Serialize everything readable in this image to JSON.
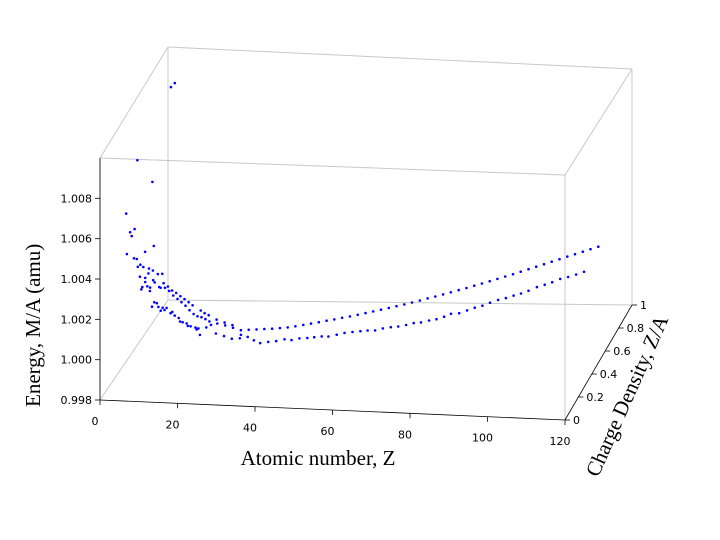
{
  "chart_data": {
    "type": "scatter",
    "x_label": "Atomic number, Z",
    "y_label": "Charge Density, Z/A",
    "z_label": "Energy, M/A (amu)",
    "x_ticks": [
      "0",
      "20",
      "40",
      "60",
      "80",
      "100",
      "120"
    ],
    "y_ticks": [
      "0",
      "0.2",
      "0.4",
      "0.6",
      "0.8",
      "1"
    ],
    "z_ticks": [
      "0.998",
      "1.000",
      "1.002",
      "1.004",
      "1.006",
      "1.008"
    ],
    "x_range": [
      0,
      120
    ],
    "y_range": [
      0,
      1
    ],
    "z_range": [
      0.998,
      1.01
    ],
    "grid": false,
    "marker_color": "#0000ff",
    "series": [
      {
        "points": [
          [
            1,
            1.0,
            1.00782
          ],
          [
            1,
            0.5,
            1.00705
          ],
          [
            1,
            0.333,
            1.00535
          ],
          [
            2,
            1.0,
            1.00803
          ],
          [
            2,
            0.667,
            1.00503
          ],
          [
            2,
            0.5,
            1.00065
          ],
          [
            2,
            0.4,
            1.00421
          ],
          [
            2,
            0.333,
            1.00444
          ],
          [
            3,
            0.5,
            1.00252
          ],
          [
            3,
            0.429,
            1.00229
          ],
          [
            3,
            0.375,
            1.00288
          ],
          [
            4,
            0.571,
            1.00242
          ],
          [
            4,
            0.5,
            1.0017
          ],
          [
            4,
            0.444,
            1.00135
          ],
          [
            4,
            0.4,
            1.00135
          ],
          [
            5,
            0.5,
            1.00161
          ],
          [
            5,
            0.455,
            1.00085
          ],
          [
            5,
            0.417,
            1.0013
          ],
          [
            6,
            0.5,
            1.0
          ],
          [
            6,
            0.462,
            1.00026
          ],
          [
            6,
            0.429,
            1.00023
          ],
          [
            7,
            0.5,
            1.00077
          ],
          [
            7,
            0.467,
            1.00001
          ],
          [
            8,
            0.5,
            0.99968
          ],
          [
            8,
            0.471,
            0.99995
          ],
          [
            8,
            0.444,
            0.99996
          ],
          [
            9,
            0.474,
            0.99994
          ],
          [
            10,
            0.5,
            0.9996
          ],
          [
            10,
            0.476,
            0.99967
          ],
          [
            11,
            0.478,
            0.99955
          ],
          [
            12,
            0.5,
            0.99914
          ],
          [
            12,
            0.48,
            0.99943
          ],
          [
            13,
            0.481,
            0.99922
          ],
          [
            14,
            0.5,
            0.99894
          ],
          [
            14,
            0.483,
            0.99916
          ],
          [
            15,
            0.484,
            0.99902
          ],
          [
            16,
            0.5,
            0.99887
          ],
          [
            17,
            0.486,
            0.99892
          ],
          [
            17,
            0.459,
            0.99902
          ],
          [
            18,
            0.45,
            0.99881
          ],
          [
            19,
            0.487,
            0.99898
          ],
          [
            20,
            0.5,
            0.99904
          ],
          [
            22,
            0.458,
            0.99887
          ],
          [
            24,
            0.462,
            0.99873
          ],
          [
            26,
            0.464,
            0.99861
          ],
          [
            28,
            0.483,
            0.99871
          ],
          [
            28,
            0.467,
            0.99863
          ],
          [
            30,
            0.469,
            0.9987
          ],
          [
            32,
            0.446,
            0.99868
          ],
          [
            34,
            0.425,
            0.99868
          ],
          [
            36,
            0.429,
            0.99873
          ],
          [
            38,
            0.432,
            0.99877
          ],
          [
            40,
            0.44,
            0.99883
          ],
          [
            42,
            0.429,
            0.99887
          ],
          [
            44,
            0.431,
            0.99896
          ],
          [
            46,
            0.434,
            0.99898
          ],
          [
            48,
            0.421,
            0.99911
          ],
          [
            50,
            0.417,
            0.99919
          ],
          [
            52,
            0.401,
            0.99929
          ],
          [
            54,
            0.409,
            0.99935
          ],
          [
            56,
            0.41,
            0.99945
          ],
          [
            58,
            0.414,
            0.99949
          ],
          [
            60,
            0.417,
            0.99953
          ],
          [
            62,
            0.408,
            0.99963
          ],
          [
            64,
            0.405,
            0.99967
          ],
          [
            66,
            0.404,
            0.99979
          ],
          [
            68,
            0.407,
            0.99985
          ],
          [
            70,
            0.402,
            0.99993
          ],
          [
            72,
            0.404,
            1.00001
          ],
          [
            74,
            0.402,
            1.00013
          ],
          [
            76,
            0.396,
            1.00022
          ],
          [
            78,
            0.401,
            1.0003
          ],
          [
            80,
            0.396,
            1.00041
          ],
          [
            82,
            0.394,
            1.00056
          ],
          [
            84,
            0.38,
            1.0008
          ],
          [
            86,
            0.387,
            1.00081
          ],
          [
            88,
            0.389,
            1.00095
          ],
          [
            90,
            0.388,
            1.00111
          ],
          [
            92,
            0.387,
            1.00123
          ],
          [
            94,
            0.384,
            1.00141
          ],
          [
            96,
            0.389,
            1.00154
          ],
          [
            98,
            0.39,
            1.00164
          ],
          [
            100,
            0.39,
            1.00178
          ],
          [
            102,
            0.385,
            1.00193
          ],
          [
            104,
            0.381,
            1.0021
          ],
          [
            106,
            0.39,
            1.00225
          ],
          [
            108,
            0.391,
            1.00238
          ],
          [
            110,
            0.388,
            1.00254
          ],
          [
            112,
            0.391,
            1.0027
          ],
          [
            114,
            0.393,
            1.0028
          ],
          [
            116,
            0.397,
            1.00292
          ],
          [
            118,
            0.4,
            1.00305
          ],
          [
            2,
            0.286,
            1.00362
          ],
          [
            3,
            0.333,
            1.00315
          ],
          [
            3,
            0.3,
            1.00444
          ],
          [
            4,
            0.364,
            1.00207
          ],
          [
            4,
            0.333,
            1.00274
          ],
          [
            5,
            0.385,
            1.0019
          ],
          [
            5,
            0.357,
            1.0026
          ],
          [
            6,
            0.375,
            1.00219
          ],
          [
            6,
            0.4,
            1.00134
          ],
          [
            7,
            0.412,
            1.00154
          ],
          [
            7,
            0.389,
            1.00178
          ],
          [
            8,
            0.421,
            1.00127
          ],
          [
            8,
            0.4,
            1.00203
          ],
          [
            9,
            0.45,
            1.00107
          ],
          [
            9,
            0.429,
            1.00142
          ],
          [
            9,
            0.409,
            1.002
          ],
          [
            10,
            0.455,
            1.0009
          ],
          [
            10,
            0.435,
            1.00123
          ],
          [
            11,
            0.458,
            1.00066
          ],
          [
            11,
            0.44,
            1.00101
          ],
          [
            12,
            0.462,
            1.00048
          ],
          [
            12,
            0.444,
            1.00088
          ],
          [
            13,
            0.464,
            1.00031
          ],
          [
            13,
            0.448,
            1.0007
          ],
          [
            14,
            0.467,
            1.00013
          ],
          [
            14,
            0.452,
            1.00054
          ],
          [
            15,
            0.469,
            0.9999
          ],
          [
            15,
            0.455,
            1.00038
          ],
          [
            16,
            0.471,
            0.99971
          ],
          [
            16,
            0.457,
            1.00022
          ],
          [
            17,
            0.472,
            0.9996
          ],
          [
            18,
            0.474,
            0.99955
          ],
          [
            18,
            0.462,
            0.99995
          ],
          [
            19,
            0.475,
            0.99946
          ],
          [
            19,
            0.463,
            0.99982
          ],
          [
            20,
            0.476,
            0.99935
          ],
          [
            20,
            0.465,
            0.99972
          ],
          [
            22,
            0.478,
            0.99925
          ],
          [
            22,
            0.468,
            0.9995
          ],
          [
            24,
            0.48,
            0.99916
          ],
          [
            24,
            0.471,
            0.99935
          ],
          [
            26,
            0.481,
            0.99905
          ],
          [
            26,
            0.473,
            0.99923
          ],
          [
            28,
            0.483,
            0.99894
          ],
          [
            30,
            0.484,
            0.99897
          ],
          [
            32,
            0.485,
            0.999
          ],
          [
            34,
            0.486,
            0.99903
          ],
          [
            36,
            0.486,
            0.99906
          ],
          [
            38,
            0.487,
            0.9991
          ],
          [
            40,
            0.488,
            0.99915
          ],
          [
            42,
            0.488,
            0.99922
          ],
          [
            44,
            0.489,
            0.9993
          ],
          [
            46,
            0.489,
            0.99938
          ],
          [
            48,
            0.49,
            0.99946
          ],
          [
            50,
            0.49,
            0.99955
          ],
          [
            52,
            0.49,
            0.99963
          ],
          [
            54,
            0.491,
            0.99972
          ],
          [
            56,
            0.491,
            0.99981
          ],
          [
            58,
            0.492,
            0.9999
          ],
          [
            60,
            0.492,
            1.0
          ],
          [
            62,
            0.492,
            1.0001
          ],
          [
            64,
            0.492,
            1.0002
          ],
          [
            66,
            0.493,
            1.0003
          ],
          [
            68,
            0.493,
            1.0004
          ],
          [
            70,
            0.493,
            1.00051
          ],
          [
            72,
            0.493,
            1.00062
          ],
          [
            74,
            0.494,
            1.00073
          ],
          [
            76,
            0.494,
            1.00085
          ],
          [
            78,
            0.494,
            1.00096
          ],
          [
            80,
            0.494,
            1.00108
          ],
          [
            82,
            0.494,
            1.0012
          ],
          [
            84,
            0.495,
            1.00132
          ],
          [
            86,
            0.495,
            1.00144
          ],
          [
            88,
            0.495,
            1.00157
          ],
          [
            90,
            0.495,
            1.0017
          ],
          [
            92,
            0.495,
            1.00183
          ],
          [
            94,
            0.495,
            1.00196
          ],
          [
            96,
            0.496,
            1.00209
          ],
          [
            98,
            0.496,
            1.00222
          ],
          [
            100,
            0.496,
            1.00236
          ],
          [
            102,
            0.496,
            1.0025
          ],
          [
            104,
            0.496,
            1.00264
          ],
          [
            106,
            0.496,
            1.00278
          ],
          [
            108,
            0.496,
            1.00292
          ],
          [
            110,
            0.496,
            1.00306
          ],
          [
            112,
            0.497,
            1.0032
          ],
          [
            114,
            0.497,
            1.00334
          ],
          [
            116,
            0.497,
            1.00348
          ],
          [
            118,
            0.497,
            1.00362
          ],
          [
            120,
            0.497,
            1.00376
          ]
        ]
      }
    ]
  }
}
